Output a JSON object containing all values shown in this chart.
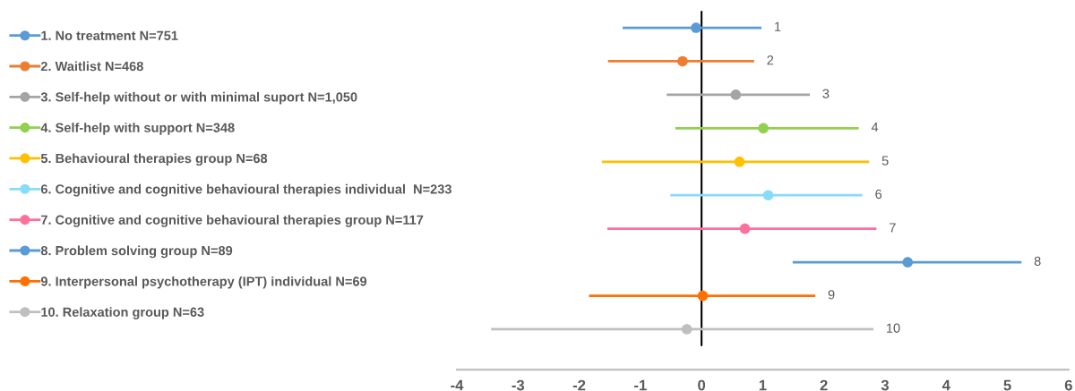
{
  "chart_data": {
    "type": "scatter",
    "orientation": "horizontal",
    "categories": [
      null,
      null,
      null,
      null,
      null,
      null,
      null,
      null,
      null,
      null
    ],
    "xlim": [
      -4,
      6
    ],
    "xticks": [
      -4,
      -3,
      -2,
      -1,
      0,
      1,
      2,
      3,
      4,
      5,
      6
    ],
    "tick_labels": "x",
    "grid": false,
    "legend": "left",
    "marker": "circle",
    "line_style": "solid",
    "ref_lines": [
      {
        "axis": "x",
        "value": 0,
        "color": "#000000"
      }
    ],
    "annotations": [
      "1",
      "2",
      "3",
      "4",
      "5",
      "6",
      "7",
      "8",
      "9",
      "10"
    ],
    "series": [
      {
        "name": "1. No treatment N=751",
        "color": "#5b9bd5",
        "values": [
          -0.09,
          null,
          null,
          null,
          null,
          null,
          null,
          null,
          null,
          null
        ],
        "errors": [
          [
            -1.29,
            0.98
          ],
          null,
          null,
          null,
          null,
          null,
          null,
          null,
          null,
          null
        ]
      },
      {
        "name": "2. Waitlist N=468",
        "color": "#ed7d31",
        "values": [
          null,
          -0.31,
          null,
          null,
          null,
          null,
          null,
          null,
          null,
          null
        ],
        "errors": [
          null,
          [
            -1.53,
            0.86
          ],
          null,
          null,
          null,
          null,
          null,
          null,
          null,
          null
        ]
      },
      {
        "name": "3. Self-help without or with minimal suport N=1,050",
        "color": "#a5a5a5",
        "values": [
          null,
          null,
          0.56,
          null,
          null,
          null,
          null,
          null,
          null,
          null
        ],
        "errors": [
          null,
          null,
          [
            -0.57,
            1.77
          ],
          null,
          null,
          null,
          null,
          null,
          null,
          null
        ]
      },
      {
        "name": "4. Self-help with support N=348",
        "color": "#92d050",
        "values": [
          null,
          null,
          null,
          1.01,
          null,
          null,
          null,
          null,
          null,
          null
        ],
        "errors": [
          null,
          null,
          null,
          [
            -0.43,
            2.57
          ],
          null,
          null,
          null,
          null,
          null,
          null
        ]
      },
      {
        "name": "5. Behavioural therapies group N=68",
        "color": "#ffc000",
        "values": [
          null,
          null,
          null,
          null,
          0.62,
          null,
          null,
          null,
          null,
          null
        ],
        "errors": [
          null,
          null,
          null,
          null,
          [
            -1.63,
            2.74
          ],
          null,
          null,
          null,
          null,
          null
        ]
      },
      {
        "name": "6. Cognitive and cognitive behavioural therapies individual  N=233",
        "color": "#87dcfa",
        "values": [
          null,
          null,
          null,
          null,
          null,
          1.09,
          null,
          null,
          null,
          null
        ],
        "errors": [
          null,
          null,
          null,
          null,
          null,
          [
            -0.51,
            2.63
          ],
          null,
          null,
          null,
          null
        ]
      },
      {
        "name": "7. Cognitive and cognitive behavioural therapies group N=117",
        "color": "#ff6f9c",
        "values": [
          null,
          null,
          null,
          null,
          null,
          null,
          0.71,
          null,
          null,
          null
        ],
        "errors": [
          null,
          null,
          null,
          null,
          null,
          null,
          [
            -1.54,
            2.86
          ],
          null,
          null,
          null
        ]
      },
      {
        "name": "8. Problem solving group N=89",
        "color": "#5b9bd5",
        "values": [
          null,
          null,
          null,
          null,
          null,
          null,
          null,
          3.37,
          null,
          null
        ],
        "errors": [
          null,
          null,
          null,
          null,
          null,
          null,
          null,
          [
            1.49,
            5.23
          ],
          null,
          null
        ]
      },
      {
        "name": "9. Interpersonal psychotherapy (IPT) individual N=69",
        "color": "#ff7000",
        "values": [
          null,
          null,
          null,
          null,
          null,
          null,
          null,
          null,
          0.02,
          null
        ],
        "errors": [
          null,
          null,
          null,
          null,
          null,
          null,
          null,
          null,
          [
            -1.84,
            1.86
          ],
          null
        ]
      },
      {
        "name": "10. Relaxation group N=63",
        "color": "#bfbfbf",
        "values": [
          null,
          null,
          null,
          null,
          null,
          null,
          null,
          null,
          null,
          -0.24
        ],
        "errors": [
          null,
          null,
          null,
          null,
          null,
          null,
          null,
          null,
          null,
          [
            -3.44,
            2.81
          ]
        ]
      }
    ]
  }
}
